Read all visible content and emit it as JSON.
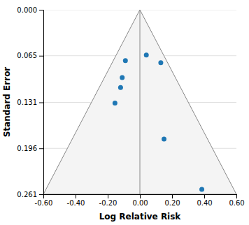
{
  "chart_data": {
    "type": "scatter",
    "title": "",
    "xlabel": "Log Relative Risk",
    "ylabel": "Standard Error",
    "x": [
      -0.09,
      -0.11,
      -0.12,
      -0.155,
      0.04,
      0.13,
      0.15,
      0.385
    ],
    "values": [
      0.072,
      0.096,
      0.11,
      0.132,
      0.064,
      0.075,
      0.183,
      0.254
    ],
    "xlim": [
      -0.6,
      0.6
    ],
    "ylim": [
      0.261,
      0.0
    ],
    "xticks": [
      {
        "value": -0.6,
        "label": "-0.60"
      },
      {
        "value": -0.4,
        "label": "-0.40"
      },
      {
        "value": -0.2,
        "label": "-0.20"
      },
      {
        "value": 0.0,
        "label": "0.00"
      },
      {
        "value": 0.2,
        "label": "0.20"
      },
      {
        "value": 0.4,
        "label": "0.40"
      },
      {
        "value": 0.6,
        "label": "0.60"
      }
    ],
    "yticks": [
      {
        "value": 0.0,
        "label": "0.000"
      },
      {
        "value": 0.065,
        "label": "0.065"
      },
      {
        "value": 0.131,
        "label": "0.131"
      },
      {
        "value": 0.196,
        "label": "0.196"
      },
      {
        "value": 0.261,
        "label": "0.261"
      }
    ],
    "funnel_x": [
      0.0,
      -0.6,
      0.6
    ],
    "funnel_y": [
      0.0,
      0.261,
      0.261
    ],
    "vline_x": 0.0,
    "grid": true
  }
}
